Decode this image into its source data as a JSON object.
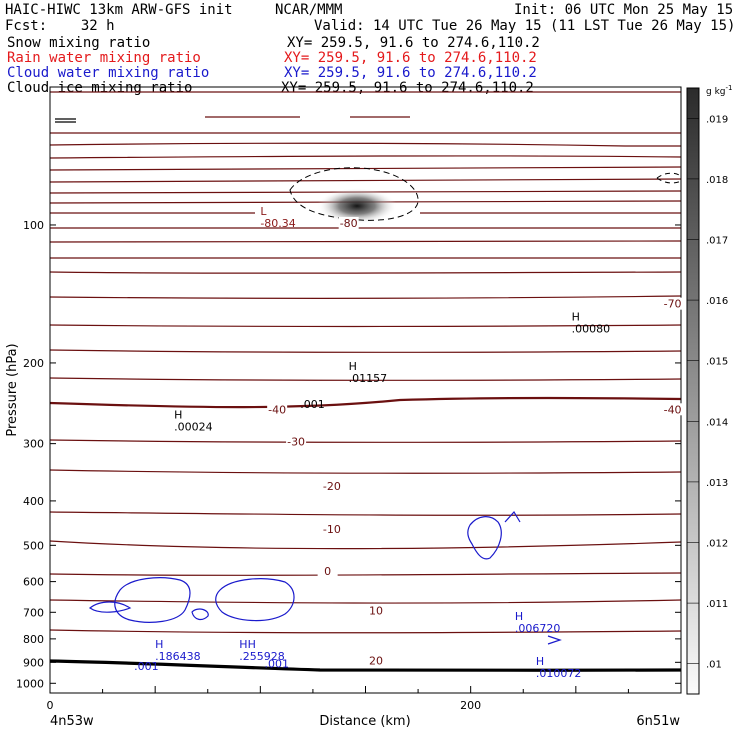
{
  "header": {
    "line1_left": "HAIC-HIWC 13km ARW-GFS init",
    "line1_mid": "NCAR/MMM",
    "line1_right": "Init: 06 UTC Mon 25 May 15",
    "line2_left": "Fcst:    32 h",
    "line2_right": "Valid: 14 UTC Tue 26 May 15 (11 LST Tue 26 May 15)",
    "fields": [
      {
        "name": "Snow mixing ratio",
        "xy": "XY= 259.5, 91.6 to 274.6,110.2",
        "color": "#000000"
      },
      {
        "name": "Rain water mixing ratio",
        "xy": "XY= 259.5, 91.6 to 274.6,110.2",
        "color": "#e41a1c"
      },
      {
        "name": "Cloud water mixing ratio",
        "xy": "XY= 259.5, 91.6 to 274.6,110.2",
        "color": "#1a1acc"
      },
      {
        "name": "Cloud ice mixing ratio",
        "xy": "XY= 259.5, 91.6 to 274.6,110.2",
        "color": "#000000"
      }
    ]
  },
  "chart_data": {
    "type": "cross-section",
    "xlabel": "Distance (km)",
    "ylabel": "Pressure (hPa)",
    "xlim": [
      0,
      300
    ],
    "ylim": [
      1050,
      50
    ],
    "y_scale": "log",
    "x_ticks": [
      0,
      200
    ],
    "y_ticks": [
      100,
      200,
      300,
      400,
      500,
      600,
      700,
      800,
      900,
      1000
    ],
    "x_endpoints": {
      "left": "4n53w",
      "right": "6n51w"
    },
    "colorbar": {
      "unit": "g kg",
      "unit_exp": "-1",
      "ticks": [
        ".019",
        ".018",
        ".017",
        ".016",
        ".015",
        ".014",
        ".013",
        ".012",
        ".011",
        ".01"
      ],
      "values": [
        0.019,
        0.018,
        0.017,
        0.016,
        0.015,
        0.014,
        0.013,
        0.012,
        0.011,
        0.01
      ]
    },
    "temperature_labels": [
      {
        "text": "-80",
        "x": 142,
        "p": 100
      },
      {
        "text": "-70",
        "x": 296,
        "p": 150
      },
      {
        "text": "-40",
        "x": 108,
        "p": 255
      },
      {
        "text": "-40",
        "x": 296,
        "p": 255
      },
      {
        "text": "-30",
        "x": 117,
        "p": 300
      },
      {
        "text": "-20",
        "x": 134,
        "p": 375
      },
      {
        "text": "-10",
        "x": 134,
        "p": 465
      },
      {
        "text": "0",
        "x": 132,
        "p": 575
      },
      {
        "text": "10",
        "x": 155,
        "p": 700
      },
      {
        "text": "20",
        "x": 155,
        "p": 900
      }
    ],
    "extrema": [
      {
        "mark": "L",
        "value": "-80.34",
        "x": 100,
        "p": 100,
        "color": "#8b1a1a"
      },
      {
        "mark": "H",
        "value": ".00080",
        "x": 248,
        "p": 170,
        "color": "#000000"
      },
      {
        "mark": "H",
        "value": ".01157",
        "x": 142,
        "p": 218,
        "color": "#000000"
      },
      {
        "mark": "",
        "value": ".001",
        "x": 119,
        "p": 248,
        "color": "#000000"
      },
      {
        "mark": "H",
        "value": ".00024",
        "x": 59,
        "p": 278,
        "color": "#000000"
      },
      {
        "mark": "H",
        "value": ".006720",
        "x": 221,
        "p": 765,
        "color": "#1a1acc"
      },
      {
        "mark": "H",
        "value": ".186438",
        "x": 50,
        "p": 880,
        "color": "#1a1acc"
      },
      {
        "mark": "",
        "value": ".001",
        "x": 40,
        "p": 925,
        "color": "#1a1acc"
      },
      {
        "mark": "HH",
        "value": ".255928",
        "x": 90,
        "p": 880,
        "color": "#1a1acc"
      },
      {
        "mark": "",
        "value": ".001",
        "x": 102,
        "p": 915,
        "color": "#1a1acc"
      },
      {
        "mark": "H",
        "value": ".010072",
        "x": 231,
        "p": 960,
        "color": "#1a1acc"
      }
    ]
  }
}
